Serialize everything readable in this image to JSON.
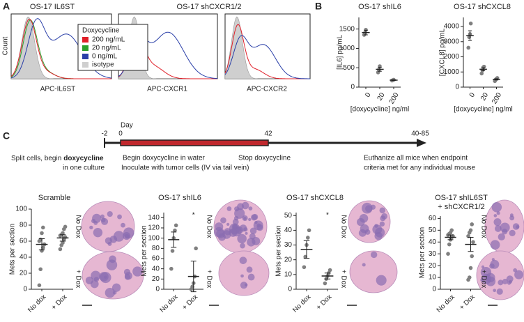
{
  "panel_labels": [
    "A",
    "B",
    "C"
  ],
  "flow": {
    "titles": [
      "OS-17 IL6ST",
      "OS-17 shCXCR1/2"
    ],
    "y_label": "Count",
    "x_labels": [
      "APC-IL6ST",
      "APC-CXCR1",
      "APC-CXCR2"
    ],
    "legend_title": "Doxycycline",
    "legend": [
      {
        "name": "200 ng/mL",
        "color": "#e0202a"
      },
      {
        "name": "20 ng/mL",
        "color": "#2ca02c"
      },
      {
        "name": "0 ng/mL",
        "color": "#2a3fa8"
      },
      {
        "name": "isotype",
        "color": "#cfcfcf"
      }
    ]
  },
  "timeline": {
    "day_label": "Day",
    "days": [
      "-2",
      "0",
      "42",
      "40-85"
    ],
    "split_line1": "Split cells, begin",
    "split_bold": "doxycycline",
    "split_line2": "in one culture",
    "begin": "Begin doxycycline in water",
    "inoculate": "Inoculate with tumor cells (IV via tail vein)",
    "stop": "Stop doxycycline",
    "euthanize_line1": "Euthanize all mice when endpoint",
    "euthanize_line2": "criteria met for any individual mouse"
  },
  "histology": {
    "no_dox": "No Dox",
    "dox": "+ Dox"
  },
  "chart_data": [
    {
      "type": "dot",
      "title": [
        "OS-17 shIL6"
      ],
      "y_label": "[IL6] pg/mL",
      "x_label": "[doxycycline] ng/ml",
      "categories": [
        "0",
        "20",
        "200"
      ],
      "points": [
        [
          1350,
          1400,
          1480
        ],
        [
          380,
          450,
          540
        ],
        [
          170,
          180,
          190
        ]
      ],
      "means": [
        1410,
        460,
        180
      ],
      "errors": [
        60,
        50,
        10
      ],
      "ylim": [
        0,
        1800
      ],
      "yticks": [
        0,
        500,
        1000,
        1500
      ],
      "color": "#808080"
    },
    {
      "type": "dot",
      "title": [
        "OS-17 shCXCL8"
      ],
      "y_label": "[CXCL8] pg/mL",
      "x_label": "[doxycycline] ng/ml",
      "categories": [
        "0",
        "20",
        "200"
      ],
      "points": [
        [
          2600,
          3300,
          3500,
          4200
        ],
        [
          900,
          1100,
          1300,
          1350
        ],
        [
          400,
          500,
          550,
          600
        ]
      ],
      "means": [
        3400,
        1180,
        510
      ],
      "errors": [
        320,
        100,
        40
      ],
      "ylim": [
        0,
        4600
      ],
      "yticks": [
        0,
        1000,
        2000,
        3000,
        4000
      ],
      "color": "#808080"
    },
    {
      "type": "dot",
      "title": [
        "Scramble"
      ],
      "y_label": "Mets per section",
      "categories": [
        "No dox",
        "+ Dox"
      ],
      "points": [
        [
          5,
          25,
          48,
          52,
          56,
          60,
          62,
          70,
          77
        ],
        [
          50,
          55,
          58,
          62,
          65,
          67,
          68,
          70,
          75,
          78
        ]
      ],
      "means": [
        56,
        64
      ],
      "errors": [
        7,
        4
      ],
      "ylim": [
        0,
        100
      ],
      "yticks": [
        0,
        20,
        40,
        60,
        80,
        100
      ],
      "color": "#808080"
    },
    {
      "type": "dot",
      "title": [
        "OS-17 shIL6"
      ],
      "y_label": "Mets per section",
      "annotation": "*",
      "categories": [
        "No dox",
        "+ Dox"
      ],
      "points": [
        [
          40,
          75,
          100,
          115,
          125
        ],
        [
          0,
          5,
          12,
          25,
          80
        ]
      ],
      "means": [
        97,
        25
      ],
      "errors": [
        15,
        30
      ],
      "ylim": [
        0,
        150
      ],
      "yticks": [
        0,
        20,
        40,
        60,
        80,
        100,
        120,
        140
      ],
      "color": "#808080"
    },
    {
      "type": "dot",
      "title": [
        "OS-17 shCXCL8"
      ],
      "y_label": "Mets per section",
      "annotation": "*",
      "categories": [
        "No dox",
        "+ Dox"
      ],
      "points": [
        [
          15,
          22,
          30,
          35,
          40
        ],
        [
          4,
          7,
          9,
          11,
          13
        ]
      ],
      "means": [
        27,
        9
      ],
      "errors": [
        6,
        2
      ],
      "ylim": [
        0,
        52
      ],
      "yticks": [
        0,
        10,
        20,
        30,
        40,
        50
      ],
      "color": "#808080"
    },
    {
      "type": "dot",
      "title": [
        "OS-17 shIL6ST",
        "+ shCXCR1/2"
      ],
      "y_label": "Mets per section",
      "categories": [
        "No dox",
        "+ Dox"
      ],
      "points": [
        [
          30,
          38,
          42,
          44,
          45,
          46,
          47,
          48,
          50
        ],
        [
          8,
          10,
          18,
          28,
          40,
          45,
          48,
          50,
          55
        ]
      ],
      "means": [
        44,
        38
      ],
      "errors": [
        2,
        6
      ],
      "ylim": [
        0,
        62
      ],
      "yticks": [
        0,
        10,
        20,
        30,
        40,
        50,
        60
      ],
      "color": "#808080"
    }
  ]
}
